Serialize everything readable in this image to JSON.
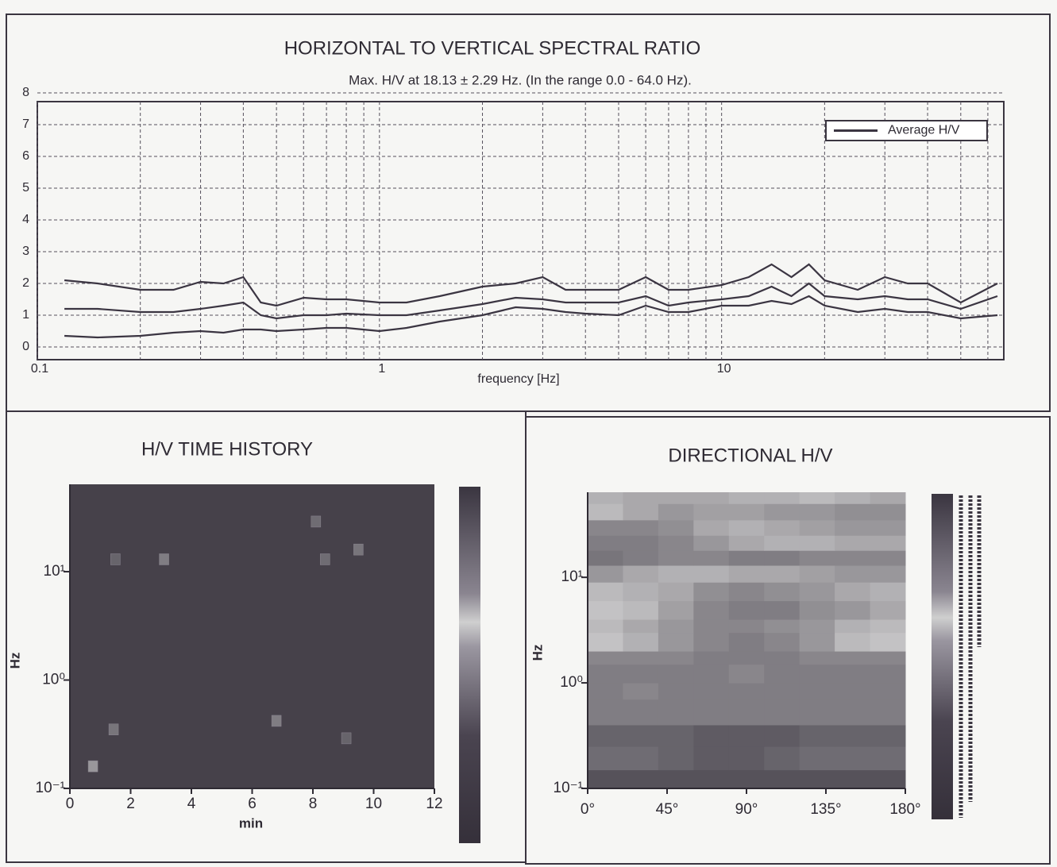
{
  "chart_data": [
    {
      "type": "line",
      "title": "HORIZONTAL TO VERTICAL SPECTRAL RATIO",
      "subtitle": "Max. H/V at 18.13 ± 2.29 Hz. (In the range 0.0 - 64.0 Hz).",
      "x_label": "frequency [Hz]",
      "xlog": true,
      "x": [
        0.12,
        0.15,
        0.2,
        0.25,
        0.3,
        0.35,
        0.4,
        0.45,
        0.5,
        0.6,
        0.7,
        0.8,
        1,
        1.2,
        1.5,
        2,
        2.5,
        3,
        3.5,
        4,
        5,
        6,
        7,
        8,
        10,
        12,
        14,
        16,
        18,
        20,
        25,
        30,
        35,
        40,
        50,
        64
      ],
      "series": [
        {
          "color": "#3b3542",
          "values": [
            2.1,
            2.0,
            1.8,
            1.8,
            2.05,
            2.0,
            2.2,
            1.4,
            1.3,
            1.55,
            1.5,
            1.5,
            1.4,
            1.4,
            1.6,
            1.9,
            2.0,
            2.2,
            1.8,
            1.8,
            1.8,
            2.2,
            1.8,
            1.8,
            1.95,
            2.2,
            2.6,
            2.2,
            2.6,
            2.1,
            1.8,
            2.2,
            2.0,
            2.0,
            1.4,
            2.0
          ]
        },
        {
          "name": "Average H/V",
          "color": "#3b3542",
          "values": [
            1.2,
            1.2,
            1.1,
            1.1,
            1.2,
            1.3,
            1.4,
            1.0,
            0.9,
            1.0,
            1.0,
            1.05,
            1.0,
            1.0,
            1.15,
            1.35,
            1.55,
            1.5,
            1.4,
            1.4,
            1.4,
            1.6,
            1.3,
            1.4,
            1.5,
            1.6,
            1.9,
            1.6,
            2.0,
            1.6,
            1.5,
            1.6,
            1.5,
            1.5,
            1.2,
            1.6
          ]
        },
        {
          "color": "#3b3542",
          "values": [
            0.35,
            0.3,
            0.35,
            0.45,
            0.5,
            0.45,
            0.55,
            0.55,
            0.5,
            0.55,
            0.6,
            0.6,
            0.5,
            0.6,
            0.8,
            1.0,
            1.25,
            1.2,
            1.1,
            1.05,
            1.0,
            1.3,
            1.1,
            1.1,
            1.3,
            1.3,
            1.45,
            1.35,
            1.6,
            1.3,
            1.1,
            1.2,
            1.1,
            1.1,
            0.9,
            1.0
          ]
        }
      ],
      "xlim": [
        0.1,
        64
      ],
      "xticks": [
        0.1,
        1,
        10
      ],
      "xminorticks": [
        0.2,
        0.3,
        0.4,
        0.5,
        0.6,
        0.7,
        0.8,
        0.9,
        2,
        3,
        4,
        5,
        6,
        7,
        8,
        9,
        20,
        30,
        40,
        50,
        60
      ],
      "ylim": [
        0,
        8
      ],
      "yticks": [
        0,
        1,
        2,
        3,
        4,
        5,
        6,
        7,
        8
      ],
      "grid": true,
      "legend": "upper right"
    },
    {
      "type": "heatmap",
      "title": "H/V TIME HISTORY",
      "x_label": "min",
      "y_label": "Hz",
      "ylog": true,
      "xlim": [
        0,
        12
      ],
      "xticks": [
        0,
        2,
        4,
        6,
        8,
        10,
        12
      ],
      "ylim": [
        0.1,
        64
      ],
      "yticks": [
        {
          "value": 0.1,
          "label": "10⁻¹"
        },
        {
          "value": 1,
          "label": "10⁰"
        },
        {
          "value": 10,
          "label": "10¹"
        }
      ],
      "colormap": [
        "#35303a",
        "#dcdcdc"
      ],
      "background": 0.1,
      "x": [
        0.76,
        1.44,
        1.5,
        3.1,
        6.8,
        8.1,
        8.4,
        9.5,
        9.1
      ],
      "y": [
        0.16,
        0.35,
        13,
        13,
        0.42,
        29,
        13,
        16,
        0.29
      ],
      "values": [
        0.6,
        0.4,
        0.3,
        0.45,
        0.45,
        0.35,
        0.35,
        0.4,
        0.3
      ]
    },
    {
      "type": "heatmap",
      "title": "DIRECTIONAL H/V",
      "y_label": "Hz",
      "ylog": true,
      "xlim": [
        0,
        180
      ],
      "xticks": [
        {
          "value": 0,
          "label": "0°"
        },
        {
          "value": 45,
          "label": "45°"
        },
        {
          "value": 90,
          "label": "90°"
        },
        {
          "value": 135,
          "label": "135°"
        },
        {
          "value": 180,
          "label": "180°"
        }
      ],
      "ylim": [
        0.1,
        64
      ],
      "yticks": [
        {
          "value": 0.1,
          "label": "10⁻¹"
        },
        {
          "value": 1,
          "label": "10⁰"
        },
        {
          "value": 10,
          "label": "10¹"
        }
      ],
      "colormap": [
        "#35303a",
        "#dcdcdc"
      ],
      "x_edges": [
        0,
        20,
        40,
        60,
        80,
        100,
        120,
        140,
        160,
        180
      ],
      "y_edges": [
        0.1,
        0.15,
        0.25,
        0.4,
        0.7,
        1,
        1.5,
        2,
        3,
        4,
        6,
        9,
        13,
        18,
        25,
        35,
        50,
        64
      ],
      "z": [
        [
          0.2,
          0.2,
          0.2,
          0.2,
          0.2,
          0.2,
          0.2,
          0.2,
          0.2
        ],
        [
          0.35,
          0.35,
          0.3,
          0.25,
          0.25,
          0.3,
          0.35,
          0.35,
          0.35
        ],
        [
          0.3,
          0.3,
          0.3,
          0.25,
          0.25,
          0.25,
          0.3,
          0.3,
          0.3
        ],
        [
          0.45,
          0.45,
          0.45,
          0.45,
          0.45,
          0.45,
          0.45,
          0.45,
          0.45
        ],
        [
          0.45,
          0.5,
          0.45,
          0.45,
          0.45,
          0.45,
          0.45,
          0.45,
          0.45
        ],
        [
          0.45,
          0.45,
          0.45,
          0.45,
          0.5,
          0.45,
          0.45,
          0.45,
          0.45
        ],
        [
          0.5,
          0.5,
          0.5,
          0.45,
          0.45,
          0.45,
          0.5,
          0.5,
          0.5
        ],
        [
          0.85,
          0.75,
          0.6,
          0.5,
          0.45,
          0.5,
          0.6,
          0.8,
          0.85
        ],
        [
          0.8,
          0.7,
          0.6,
          0.5,
          0.5,
          0.55,
          0.6,
          0.75,
          0.8
        ],
        [
          0.85,
          0.8,
          0.65,
          0.5,
          0.45,
          0.45,
          0.55,
          0.6,
          0.7
        ],
        [
          0.8,
          0.75,
          0.7,
          0.55,
          0.5,
          0.55,
          0.6,
          0.7,
          0.75
        ],
        [
          0.6,
          0.7,
          0.75,
          0.75,
          0.7,
          0.7,
          0.65,
          0.6,
          0.6
        ],
        [
          0.4,
          0.45,
          0.5,
          0.5,
          0.45,
          0.45,
          0.5,
          0.5,
          0.5
        ],
        [
          0.45,
          0.45,
          0.5,
          0.6,
          0.7,
          0.75,
          0.75,
          0.7,
          0.7
        ],
        [
          0.5,
          0.5,
          0.55,
          0.7,
          0.75,
          0.7,
          0.65,
          0.6,
          0.6
        ],
        [
          0.8,
          0.7,
          0.6,
          0.65,
          0.65,
          0.6,
          0.6,
          0.55,
          0.55
        ],
        [
          0.75,
          0.7,
          0.7,
          0.7,
          0.75,
          0.75,
          0.8,
          0.75,
          0.7
        ]
      ]
    }
  ]
}
